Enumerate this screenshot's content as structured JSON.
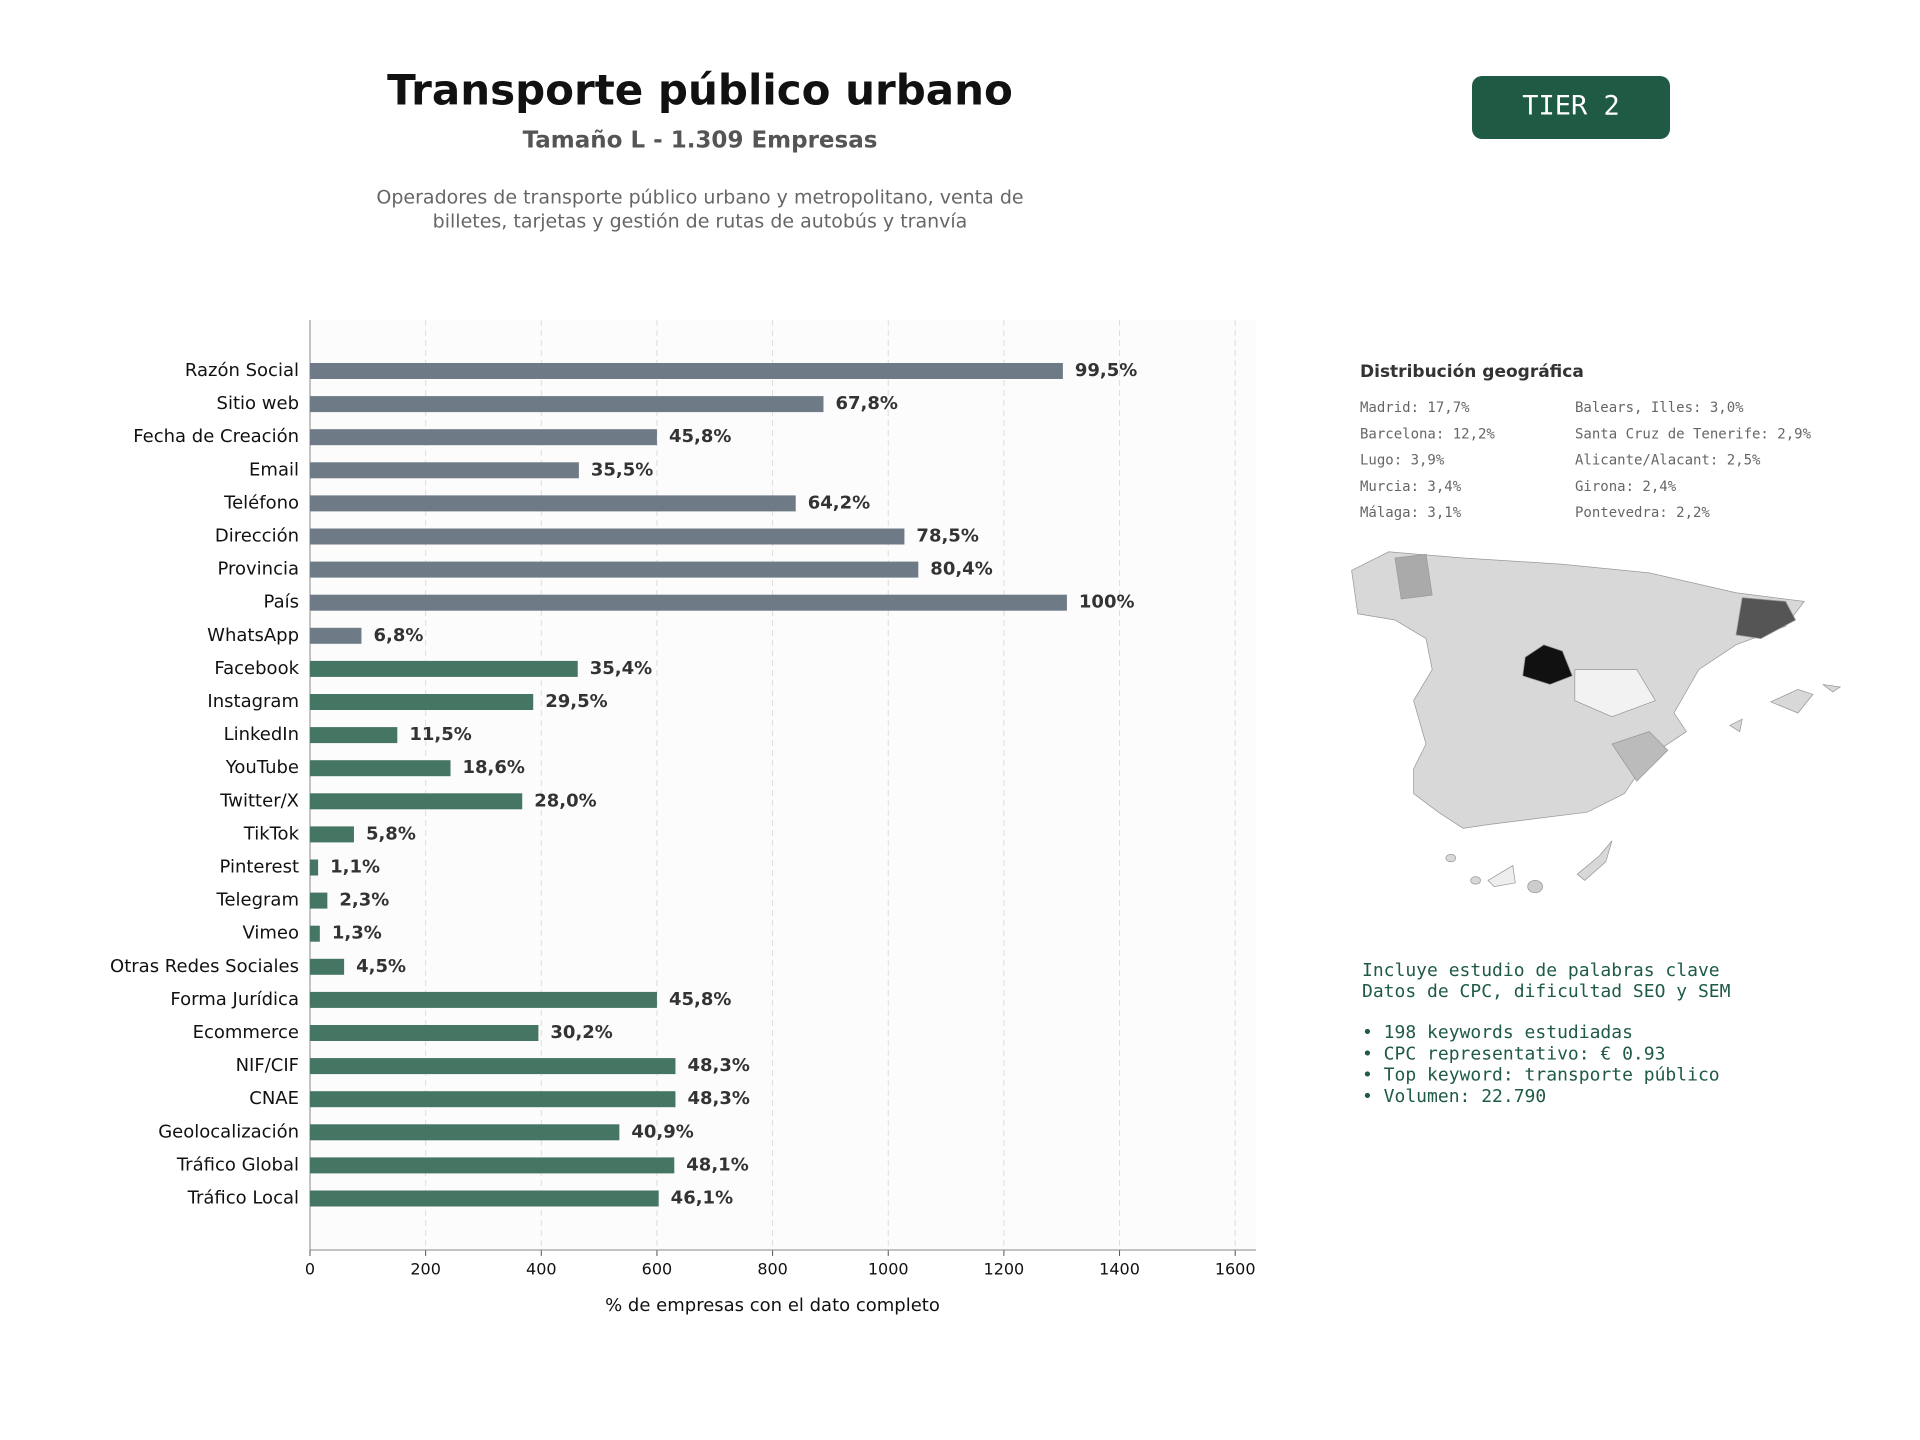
{
  "chart_data": {
    "type": "bar",
    "orientation": "horizontal",
    "title": "Transporte público urbano",
    "subtitle": "Tamaño L - 1.309 Empresas",
    "description": [
      "Operadores de transporte público urbano y metropolitano, venta de",
      "billetes, tarjetas y gestión de rutas de autobús y tranvía"
    ],
    "badge": "TIER 2",
    "x_label": "% de empresas con el dato completo",
    "categories": [
      "Razón Social",
      "Sitio web",
      "Fecha de Creación",
      "Email",
      "Teléfono",
      "Dirección",
      "Provincia",
      "País",
      "WhatsApp",
      "Facebook",
      "Instagram",
      "LinkedIn",
      "YouTube",
      "Twitter/X",
      "TikTok",
      "Pinterest",
      "Telegram",
      "Vimeo",
      "Otras Redes Sociales",
      "Forma Jurídica",
      "Ecommerce",
      "NIF/CIF",
      "CNAE",
      "Geolocalización",
      "Tráfico Global",
      "Tráfico Local"
    ],
    "values": [
      1302,
      888,
      600,
      465,
      840,
      1028,
      1052,
      1309,
      89,
      463,
      386,
      151,
      243,
      367,
      76,
      14,
      30,
      17,
      59,
      600,
      395,
      632,
      632,
      535,
      630,
      603
    ],
    "value_labels": [
      "99,5%",
      "67,8%",
      "45,8%",
      "35,5%",
      "64,2%",
      "78,5%",
      "80,4%",
      "100%",
      "6,8%",
      "35,4%",
      "29,5%",
      "11,5%",
      "18,6%",
      "28,0%",
      "5,8%",
      "1,1%",
      "2,3%",
      "1,3%",
      "4,5%",
      "45,8%",
      "30,2%",
      "48,3%",
      "48,3%",
      "40,9%",
      "48,1%",
      "46,1%"
    ],
    "colors": [
      "#6e7a86",
      "#6e7a86",
      "#6e7a86",
      "#6e7a86",
      "#6e7a86",
      "#6e7a86",
      "#6e7a86",
      "#6e7a86",
      "#6e7a86",
      "#457563",
      "#457563",
      "#457563",
      "#457563",
      "#457563",
      "#457563",
      "#457563",
      "#457563",
      "#457563",
      "#457563",
      "#457563",
      "#457563",
      "#457563",
      "#457563",
      "#457563",
      "#457563",
      "#457563"
    ],
    "xlim": [
      0,
      1636
    ],
    "xticks": [
      0,
      200,
      400,
      600,
      800,
      1000,
      1200,
      1400,
      1600
    ],
    "grid": true
  },
  "geo": {
    "title": "Distribución geográfica",
    "column_1": [
      "Madrid: 17,7%",
      "Barcelona: 12,2%",
      "Lugo: 3,9%",
      "Murcia: 3,4%",
      "Málaga: 3,1%"
    ],
    "column_2": [
      "Balears, Illes: 3,0%",
      "Santa Cruz de Tenerife: 2,9%",
      "Alicante/Alacant: 2,5%",
      "Girona: 2,4%",
      "Pontevedra: 2,2%"
    ]
  },
  "keywords": {
    "intro": [
      "Incluye estudio de palabras clave",
      "Datos de CPC, dificultad SEO y SEM"
    ],
    "bullets": [
      "• 198 keywords estudiadas",
      "• CPC representativo: € 0.93",
      "• Top keyword: transporte público",
      "• Volumen: 22.790"
    ]
  }
}
